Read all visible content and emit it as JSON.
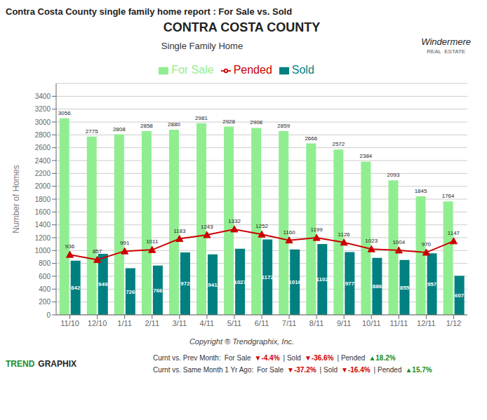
{
  "chart_data": {
    "type": "bar",
    "title": "Contra Costa County single family home report : For Sale vs. Sold",
    "subtitle": "Single Family Home",
    "ylabel": "Number of Homes",
    "categories": [
      "11/10",
      "12/10",
      "1/11",
      "2/11",
      "3/11",
      "4/11",
      "5/11",
      "6/11",
      "7/11",
      "8/11",
      "9/11",
      "10/11",
      "11/11",
      "12/11",
      "1/12"
    ],
    "series": [
      {
        "name": "For Sale",
        "type": "bar",
        "color": "#90EE90",
        "values": [
          3056,
          2775,
          2808,
          2858,
          2880,
          2981,
          2928,
          2908,
          2859,
          2666,
          2572,
          2384,
          2093,
          1845,
          1764
        ]
      },
      {
        "name": "Sold",
        "type": "bar",
        "color": "#008080",
        "values": [
          842,
          949,
          726,
          766,
          972,
          941,
          1027,
          1172,
          1016,
          1102,
          977,
          886,
          855,
          957,
          607
        ]
      },
      {
        "name": "Pended",
        "type": "line",
        "color": "#cc0000",
        "marker": "triangle",
        "values": [
          936,
          857,
          991,
          1011,
          1183,
          1243,
          1332,
          1252,
          1160,
          1199,
          1126,
          1023,
          1004,
          970,
          1147
        ]
      }
    ],
    "ylim": [
      0,
      3600
    ],
    "yticks": [
      0,
      200,
      400,
      600,
      800,
      1000,
      1200,
      1400,
      1600,
      1800,
      2000,
      2200,
      2400,
      2600,
      2800,
      3000,
      3200,
      3400
    ],
    "grid": true,
    "legend": "top",
    "data_labels": true,
    "annotations": [
      [
        {
          "text": "CONTRA COSTA COUNTY"
        }
      ],
      [
        {
          "text": "Windermere"
        }
      ],
      [
        {
          "text": "REAL  ESTATE"
        }
      ],
      [
        {
          "text": "Copyright ® Trendgraphix, Inc."
        }
      ],
      [
        {
          "text": "TREND",
          "color": "#228B22"
        },
        {
          "text": "GRAPHIX"
        }
      ],
      [
        {
          "text": "Curnt vs. Prev Month:"
        },
        {
          "text": "For Sale"
        },
        {
          "text": "▼-4.4%",
          "color": "#cc0000"
        },
        {
          "text": "| Sold"
        },
        {
          "text": "▼-36.6%",
          "color": "#cc0000"
        },
        {
          "text": "| Pended"
        },
        {
          "text": "▲18.2%",
          "color": "#228B22"
        }
      ],
      [
        {
          "text": "Curnt vs. Same Month 1 Yr Ago:"
        },
        {
          "text": "For Sale"
        },
        {
          "text": "▼-37.2%",
          "color": "#cc0000"
        },
        {
          "text": "| Sold"
        },
        {
          "text": "▼-16.4%",
          "color": "#cc0000"
        },
        {
          "text": "| Pended"
        },
        {
          "text": "▲15.7%",
          "color": "#228B22"
        }
      ]
    ]
  }
}
